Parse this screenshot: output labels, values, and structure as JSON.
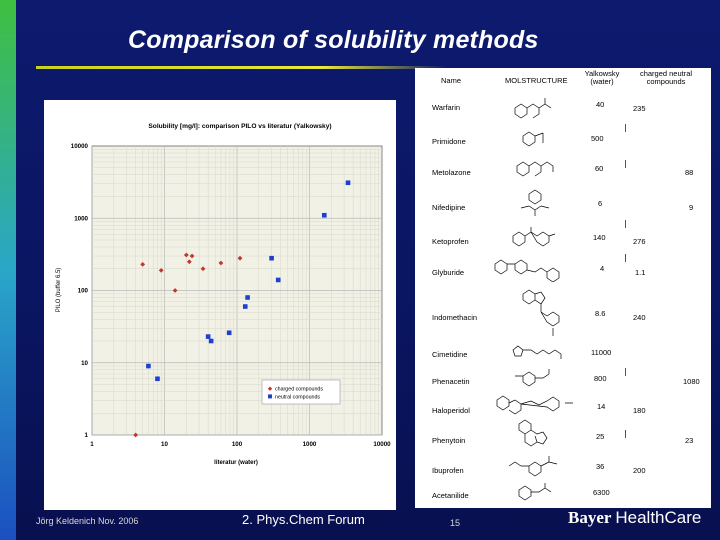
{
  "slide": {
    "title": "Comparison of solubility methods",
    "footer_author": "Jörg Keldenich  Nov. 2006",
    "footer_event": "2. Phys.Chem Forum",
    "page_number": "15",
    "logo_brand": "Bayer ",
    "logo_suffix": "HealthCare",
    "colors": {
      "background": "#0d1a6e",
      "accent_line": "#c8d21e",
      "charged": "#c0392b",
      "neutral": "#1f3fd0"
    }
  },
  "chart_data": {
    "type": "scatter",
    "title": "Solubility [mg/l]: comparison PILO vs literatur (Yalkowsky)",
    "xlabel": "literatur (water)",
    "ylabel": "PILO (buffer 6.5)",
    "x_scale": "log",
    "y_scale": "log",
    "xlim": [
      1,
      10000
    ],
    "ylim": [
      1,
      10000
    ],
    "x_ticks": [
      "1",
      "10",
      "100",
      "1000",
      "10000"
    ],
    "y_ticks": [
      "1",
      "10",
      "100",
      "1000",
      "10000"
    ],
    "grid": true,
    "legend_position": "bottom-right",
    "series": [
      {
        "name": "charged compounds",
        "color": "#c0392b",
        "marker": "diamond",
        "points": [
          [
            4,
            1
          ],
          [
            5,
            230
          ],
          [
            9,
            190
          ],
          [
            14,
            100
          ],
          [
            20,
            310
          ],
          [
            22,
            250
          ],
          [
            24,
            300
          ],
          [
            34,
            200
          ],
          [
            60,
            240
          ],
          [
            110,
            280
          ]
        ]
      },
      {
        "name": "neutral compounds",
        "color": "#1f3fd0",
        "marker": "square",
        "points": [
          [
            6,
            9
          ],
          [
            8,
            6
          ],
          [
            40,
            23
          ],
          [
            44,
            20
          ],
          [
            78,
            26
          ],
          [
            130,
            60
          ],
          [
            140,
            80
          ],
          [
            300,
            280
          ],
          [
            370,
            140
          ],
          [
            1600,
            1100
          ],
          [
            3400,
            3100
          ]
        ]
      }
    ]
  },
  "table": {
    "headers": {
      "name": "Name",
      "structure": "MOLSTRUCTURE",
      "yalkowsky": "Yalkowsky (water)",
      "group": "charged   neutral",
      "group_sub": "compounds"
    },
    "rows": [
      {
        "name": "Warfarin",
        "yalk": "40",
        "charged": "235",
        "neutral": ""
      },
      {
        "name": "Primidone",
        "yalk": "500",
        "charged": "",
        "neutral": ""
      },
      {
        "name": "Metolazone",
        "yalk": "60",
        "charged": "",
        "neutral": "88"
      },
      {
        "name": "Nifedipine",
        "yalk": "6",
        "charged": "",
        "neutral": "9"
      },
      {
        "name": "Ketoprofen",
        "yalk": "140",
        "charged": "276",
        "neutral": ""
      },
      {
        "name": "Glyburide",
        "yalk": "4",
        "charged": "1.1",
        "neutral": ""
      },
      {
        "name": "Indomethacin",
        "yalk": "8.6",
        "charged": "240",
        "neutral": ""
      },
      {
        "name": "Cimetidine",
        "yalk": "11000",
        "charged": "",
        "neutral": ""
      },
      {
        "name": "Phenacetin",
        "yalk": "800",
        "charged": "",
        "neutral": "1080"
      },
      {
        "name": "Haloperidol",
        "yalk": "14",
        "charged": "180",
        "neutral": ""
      },
      {
        "name": "Phenytoin",
        "yalk": "25",
        "charged": "",
        "neutral": "23"
      },
      {
        "name": "Ibuprofen",
        "yalk": "36",
        "charged": "200",
        "neutral": ""
      },
      {
        "name": "Acetanilide",
        "yalk": "6300",
        "charged": "",
        "neutral": ""
      }
    ]
  }
}
